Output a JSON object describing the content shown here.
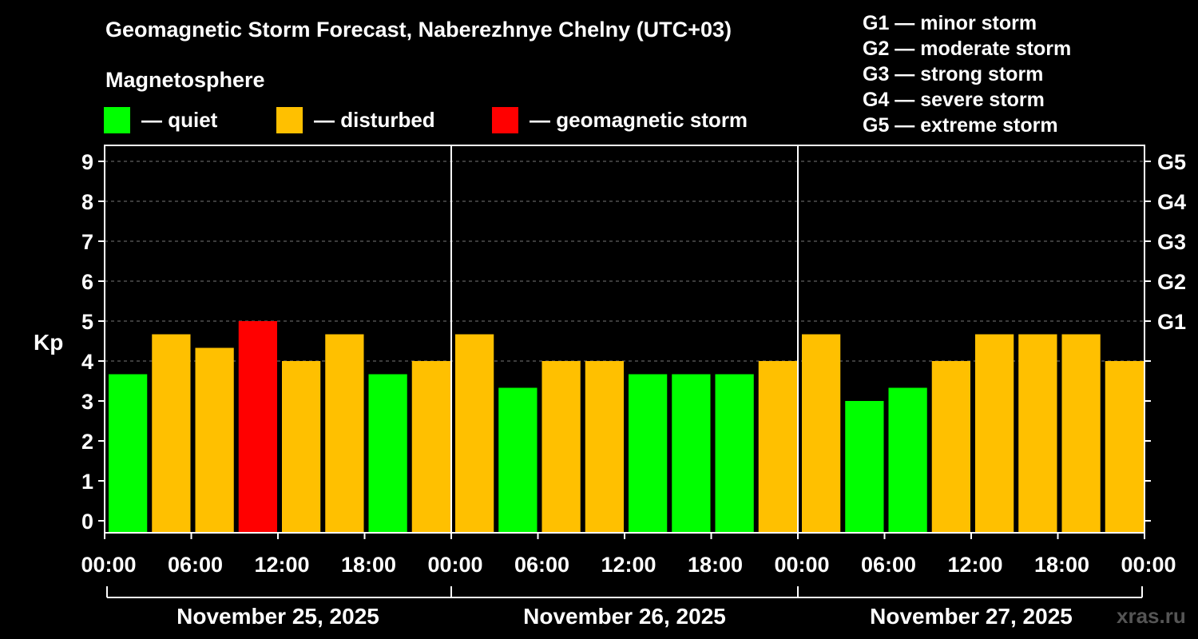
{
  "chart_data": {
    "type": "bar",
    "title": "Geomagnetic Storm Forecast, Naberezhnye Chelny (UTC+03)",
    "ylabel": "Kp",
    "ylim": [
      0,
      9
    ],
    "y_ticks": [
      "0",
      "1",
      "2",
      "3",
      "4",
      "5",
      "6",
      "7",
      "8",
      "9"
    ],
    "right_ticks": [
      {
        "label": "G1",
        "kp": 5
      },
      {
        "label": "G2",
        "kp": 6
      },
      {
        "label": "G3",
        "kp": 7
      },
      {
        "label": "G4",
        "kp": 8
      },
      {
        "label": "G5",
        "kp": 9
      }
    ],
    "x_tick_labels": [
      "00:00",
      "06:00",
      "12:00",
      "18:00",
      "00:00",
      "06:00",
      "12:00",
      "18:00",
      "00:00",
      "06:00",
      "12:00",
      "18:00",
      "00:00"
    ],
    "days": [
      "November 25, 2025",
      "November 26, 2025",
      "November 27, 2025"
    ],
    "interval_hours": 3,
    "values": [
      3.67,
      4.67,
      4.33,
      5.0,
      4.0,
      4.67,
      3.67,
      4.0,
      4.67,
      3.33,
      4.0,
      4.0,
      3.67,
      3.67,
      3.67,
      4.0,
      4.67,
      3.0,
      3.33,
      4.0,
      4.67,
      4.67,
      4.67,
      4.0
    ],
    "status": [
      "quiet",
      "disturbed",
      "disturbed",
      "storm",
      "disturbed",
      "disturbed",
      "quiet",
      "disturbed",
      "disturbed",
      "quiet",
      "disturbed",
      "disturbed",
      "quiet",
      "quiet",
      "quiet",
      "disturbed",
      "disturbed",
      "quiet",
      "quiet",
      "disturbed",
      "disturbed",
      "disturbed",
      "disturbed",
      "disturbed"
    ],
    "grid": true
  },
  "magnetosphere_label": "Magnetosphere",
  "legend": [
    {
      "key": "quiet",
      "label": "— quiet",
      "color": "#00ff00"
    },
    {
      "key": "disturbed",
      "label": "— disturbed",
      "color": "#ffc000"
    },
    {
      "key": "storm",
      "label": "— geomagnetic storm",
      "color": "#ff0000"
    }
  ],
  "g_scale": [
    "G1 — minor storm",
    "G2 — moderate storm",
    "G3 — strong storm",
    "G4 — severe storm",
    "G5 — extreme storm"
  ],
  "watermark": "xras.ru"
}
